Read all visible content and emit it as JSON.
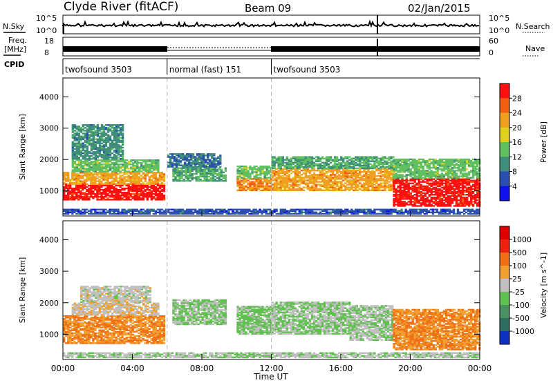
{
  "header": {
    "station": "Clyde River (fitACF)",
    "beam": "Beam 09",
    "date": "02/Jan/2015"
  },
  "top_panels": {
    "nsky_label": "N.Sky",
    "nsky_ticks": [
      "10^5",
      "10^0"
    ],
    "nsearch_label": "N.Search",
    "nsearch_ticks": [
      "10^5",
      "10^0"
    ],
    "freq_label_1": "Freq.",
    "freq_label_2": "[MHz]",
    "freq_ticks": [
      "18",
      "8"
    ],
    "nave_label": "Nave",
    "nave_ticks": [
      "60",
      "0"
    ],
    "cpid_label": "CPID",
    "cpid_segments": [
      {
        "label": "twofsound 3503",
        "start_hour": 0,
        "end_hour": 6
      },
      {
        "label": "normal (fast) 151",
        "start_hour": 6,
        "end_hour": 12
      },
      {
        "label": "twofsound 3503",
        "start_hour": 12,
        "end_hour": 24
      }
    ]
  },
  "x_axis": {
    "title": "Time UT",
    "tick_labels": [
      "00:00",
      "04:00",
      "08:00",
      "12:00",
      "16:00",
      "20:00",
      "00:00"
    ],
    "tick_hours": [
      0,
      4,
      8,
      12,
      16,
      20,
      24
    ]
  },
  "chart_data": [
    {
      "type": "heatmap",
      "title": "",
      "xlabel": "Time UT",
      "ylabel": "Slant Range [km]",
      "xlim": [
        0,
        24
      ],
      "ylim": [
        200,
        4600
      ],
      "y_tick_labels": [
        "1000",
        "2000",
        "3000",
        "4000"
      ],
      "colorbar": {
        "label": "Power [dB]",
        "tick_labels": [
          "4",
          "8",
          "12",
          "16",
          "20",
          "24",
          "28"
        ],
        "range": [
          0,
          32
        ],
        "colors": [
          "#1010ee",
          "#2a4fb0",
          "#3f8e7a",
          "#60c060",
          "#e0d020",
          "#f0a020",
          "#f06010",
          "#ff1010"
        ]
      },
      "regions": [
        {
          "x": [
            0.0,
            5.8
          ],
          "y": [
            700,
            1200
          ],
          "value": 30
        },
        {
          "x": [
            0.0,
            5.8
          ],
          "y": [
            1200,
            1600
          ],
          "value": 22
        },
        {
          "x": [
            0.5,
            5.5
          ],
          "y": [
            1600,
            2000
          ],
          "value": 14
        },
        {
          "x": [
            0.5,
            3.5
          ],
          "y": [
            2000,
            3100
          ],
          "value": 10
        },
        {
          "x": [
            6.3,
            9.3
          ],
          "y": [
            1300,
            1750
          ],
          "value": 12
        },
        {
          "x": [
            6.0,
            9.0
          ],
          "y": [
            1750,
            2200
          ],
          "value": 8
        },
        {
          "x": [
            10.0,
            12.0
          ],
          "y": [
            1000,
            1400
          ],
          "value": 24
        },
        {
          "x": [
            10.0,
            12.0
          ],
          "y": [
            1400,
            1800
          ],
          "value": 14
        },
        {
          "x": [
            12.0,
            19.0
          ],
          "y": [
            1000,
            1700
          ],
          "value": 22
        },
        {
          "x": [
            12.0,
            19.0
          ],
          "y": [
            1700,
            2100
          ],
          "value": 12
        },
        {
          "x": [
            19.0,
            24.0
          ],
          "y": [
            500,
            1400
          ],
          "value": 30
        },
        {
          "x": [
            19.0,
            24.0
          ],
          "y": [
            1400,
            2000
          ],
          "value": 14
        },
        {
          "x": [
            0.0,
            24.0
          ],
          "y": [
            250,
            420
          ],
          "value": 6
        }
      ]
    },
    {
      "type": "heatmap",
      "title": "",
      "xlabel": "Time UT",
      "ylabel": "Slant Range [km]",
      "xlim": [
        0,
        24
      ],
      "ylim": [
        200,
        4600
      ],
      "y_tick_labels": [
        "1000",
        "2000",
        "3000",
        "4000"
      ],
      "colorbar": {
        "label": "Velocity [m s^-1]",
        "tick_labels": [
          "1000",
          "500",
          "100",
          "25",
          "-25",
          "-100",
          "-500",
          "-1000"
        ],
        "range": [
          -1200,
          1200
        ],
        "colors": [
          "#1030c0",
          "#2f6e5e",
          "#4a9060",
          "#60c050",
          "#c0c0c0",
          "#f0a030",
          "#f07018",
          "#ee2010",
          "#e00000"
        ]
      },
      "regions": [
        {
          "x": [
            0.0,
            5.8
          ],
          "y": [
            700,
            1600
          ],
          "value": 400
        },
        {
          "x": [
            0.5,
            5.5
          ],
          "y": [
            1600,
            2000
          ],
          "value": 60
        },
        {
          "x": [
            1.0,
            5.0
          ],
          "y": [
            2000,
            2500
          ],
          "value": 0
        },
        {
          "x": [
            6.3,
            9.3
          ],
          "y": [
            1300,
            2100
          ],
          "value": -150
        },
        {
          "x": [
            10.0,
            12.0
          ],
          "y": [
            1000,
            1900
          ],
          "value": -200
        },
        {
          "x": [
            12.0,
            16.5
          ],
          "y": [
            1000,
            2000
          ],
          "value": -150
        },
        {
          "x": [
            16.5,
            19.0
          ],
          "y": [
            800,
            1900
          ],
          "value": -120
        },
        {
          "x": [
            19.0,
            24.0
          ],
          "y": [
            500,
            1800
          ],
          "value": 400
        },
        {
          "x": [
            0.0,
            24.0
          ],
          "y": [
            250,
            420
          ],
          "value": -80
        }
      ]
    }
  ]
}
